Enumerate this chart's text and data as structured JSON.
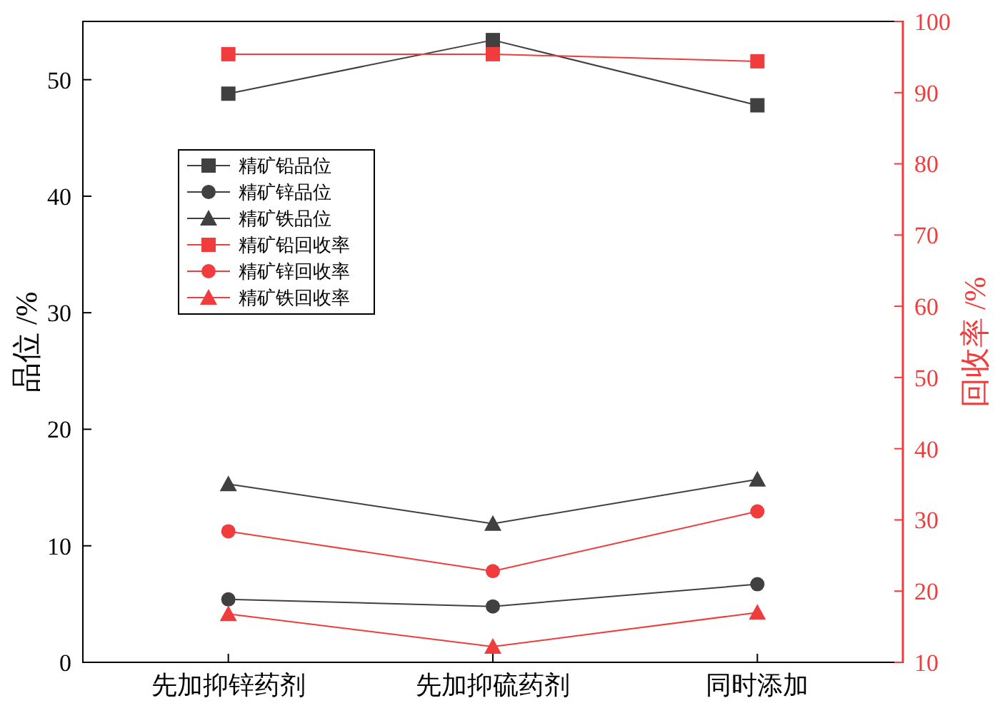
{
  "chart_data": {
    "type": "line",
    "categories": [
      "先加抑锌药剂",
      "先加抑硫药剂",
      "同时添加"
    ],
    "ylabel": "品位 /%",
    "y2label": "回收率 /%",
    "ylim": [
      0,
      55
    ],
    "yticks": [
      0,
      10,
      20,
      30,
      40,
      50
    ],
    "y2lim": [
      10,
      100
    ],
    "y2ticks": [
      10,
      20,
      30,
      40,
      50,
      60,
      70,
      80,
      90,
      100
    ],
    "grid": false,
    "legend": "top left",
    "series": [
      {
        "name": "精矿铅品位",
        "color": "#404040",
        "marker": "square",
        "values": [
          48.8,
          53.4,
          47.8
        ]
      },
      {
        "name": "精矿锌品位",
        "color": "#404040",
        "marker": "circle",
        "values": [
          5.4,
          4.8,
          6.7
        ]
      },
      {
        "name": "精矿铁品位",
        "color": "#404040",
        "marker": "triangle",
        "values": [
          15.3,
          11.9,
          15.7
        ]
      },
      {
        "name": "精矿铅回收率",
        "color": "#f03c3c",
        "marker": "square",
        "axis": "y2",
        "values": [
          95.4,
          95.4,
          94.4
        ]
      },
      {
        "name": "精矿锌回收率",
        "color": "#f03c3c",
        "marker": "circle",
        "axis": "y2",
        "values": [
          28.4,
          22.8,
          31.2
        ]
      },
      {
        "name": "精矿铁回收率",
        "color": "#f03c3c",
        "marker": "triangle",
        "axis": "y2",
        "values": [
          16.8,
          12.2,
          17.0
        ]
      }
    ]
  }
}
